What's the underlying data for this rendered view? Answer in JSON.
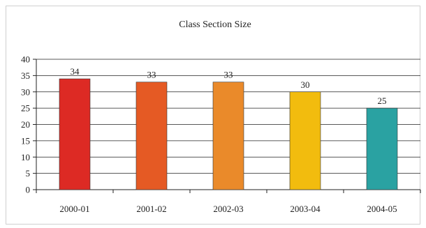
{
  "chart_data": {
    "type": "bar",
    "title": "Class Section Size",
    "xlabel": "",
    "ylabel": "",
    "categories": [
      "2000-01",
      "2001-02",
      "2002-03",
      "2003-04",
      "2004-05"
    ],
    "values": [
      34,
      33,
      33,
      30,
      25
    ],
    "data_labels": [
      "34",
      "33",
      "33",
      "30",
      "25"
    ],
    "bar_colors": [
      "#dd2a24",
      "#e55a24",
      "#ea8a2a",
      "#f2bc0e",
      "#2aa2a2"
    ],
    "ylim": [
      0,
      40
    ],
    "yticks": [
      0,
      5,
      10,
      15,
      20,
      25,
      30,
      35,
      40
    ],
    "ytick_labels": [
      "0",
      "5",
      "10",
      "15",
      "20",
      "25",
      "30",
      "35",
      "40"
    ],
    "grid": true,
    "legend": "none"
  }
}
